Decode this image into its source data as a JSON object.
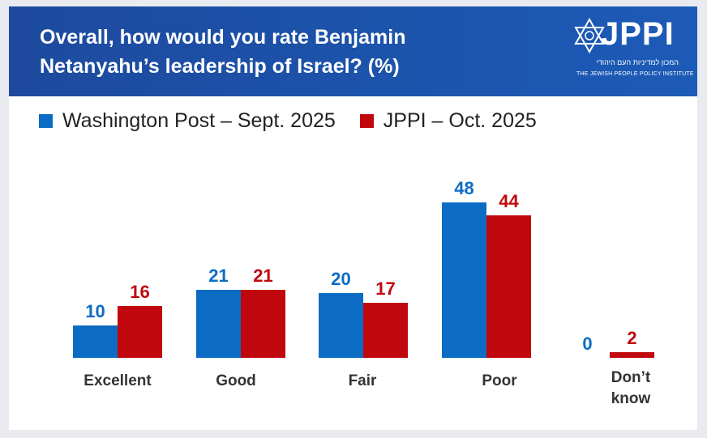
{
  "header": {
    "title_line1": "Overall, how would you rate Benjamin",
    "title_line2": "Netanyahu’s leadership of Israel? (%)",
    "logo_text": "JPPI",
    "logo_hebrew": "המכון למדיניות העם היהודי",
    "logo_english": "THE JEWISH PEOPLE POLICY INSTITUTE"
  },
  "colors": {
    "blue": "#0c6cc4",
    "red": "#c0070e",
    "banner": "#1d4a9e"
  },
  "chart_data": {
    "type": "bar",
    "title": "Overall, how would you rate Benjamin Netanyahu’s leadership of Israel? (%)",
    "categories": [
      "Excellent",
      "Good",
      "Fair",
      "Poor",
      "Don’t know"
    ],
    "series": [
      {
        "name": "Washington Post – Sept. 2025",
        "values": [
          10,
          21,
          20,
          48,
          0
        ],
        "color": "#0c6cc4"
      },
      {
        "name": "JPPI – Oct. 2025",
        "values": [
          16,
          21,
          17,
          44,
          2
        ],
        "color": "#c0070e"
      }
    ],
    "ylim": [
      0,
      50
    ],
    "grid": false,
    "legend": "top-left"
  }
}
